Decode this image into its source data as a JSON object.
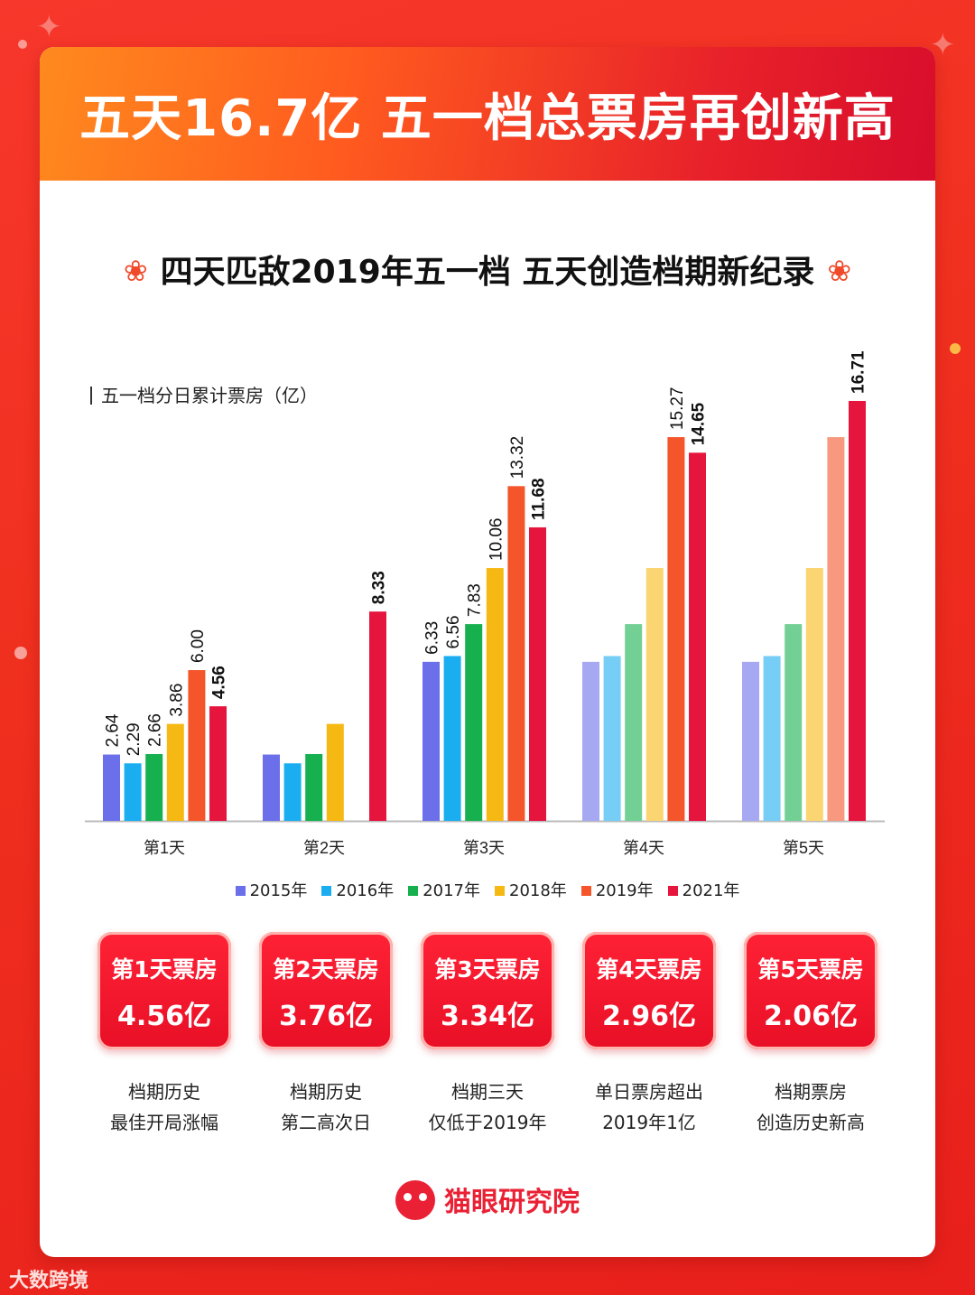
{
  "header": {
    "title": "五天16.7亿 五一档总票房再创新高",
    "subtitle": "四天匹敌2019年五一档 五天创造档期新纪录",
    "subtitle_deco": "❀"
  },
  "chart_data": {
    "type": "bar",
    "title": "五一档分日累计票房（亿）",
    "categories": [
      "第1天",
      "第2天",
      "第3天",
      "第4天",
      "第5天"
    ],
    "series": [
      {
        "name": "2015年",
        "color": "#6b6fe9",
        "values": [
          2.64,
          null,
          6.33,
          null,
          null
        ],
        "labels": [
          "2.64",
          "",
          "6.33",
          "",
          ""
        ]
      },
      {
        "name": "2016年",
        "color": "#1aaef0",
        "values": [
          2.29,
          null,
          6.56,
          null,
          null
        ],
        "labels": [
          "2.29",
          "",
          "6.56",
          "",
          ""
        ]
      },
      {
        "name": "2017年",
        "color": "#16b04e",
        "values": [
          2.66,
          null,
          7.83,
          null,
          null
        ],
        "labels": [
          "2.66",
          "",
          "7.83",
          "",
          ""
        ]
      },
      {
        "name": "2018年",
        "color": "#f6b914",
        "values": [
          3.86,
          null,
          10.06,
          null,
          null
        ],
        "labels": [
          "3.86",
          "",
          "10.06",
          "",
          ""
        ]
      },
      {
        "name": "2019年",
        "color": "#f4552a",
        "values": [
          6.0,
          null,
          13.32,
          15.27,
          null
        ],
        "labels": [
          "6.00",
          "",
          "13.32",
          "15.27",
          ""
        ]
      },
      {
        "name": "2021年",
        "color": "#e5153d",
        "values": [
          4.56,
          8.33,
          11.68,
          14.65,
          16.71
        ],
        "labels": [
          "4.56",
          "8.33",
          "11.68",
          "14.65",
          "16.71"
        ]
      }
    ],
    "note": "Bars for days where earlier years had ended repeat the final totals in lighter shades.",
    "ylim": [
      0,
      17.5
    ]
  },
  "tiles": [
    {
      "title": "第1天票房",
      "value": "4.56亿",
      "note1": "档期历史",
      "note2": "最佳开局涨幅"
    },
    {
      "title": "第2天票房",
      "value": "3.76亿",
      "note1": "档期历史",
      "note2": "第二高次日"
    },
    {
      "title": "第3天票房",
      "value": "3.34亿",
      "note1": "档期三天",
      "note2": "仅低于2019年"
    },
    {
      "title": "第4天票房",
      "value": "2.96亿",
      "note1": "单日票房超出",
      "note2": "2019年1亿"
    },
    {
      "title": "第5天票房",
      "value": "2.06亿",
      "note1": "档期票房",
      "note2": "创造历史新高"
    }
  ],
  "brand": {
    "name": "猫眼研究院"
  },
  "watermark": {
    "text": "大数跨境"
  }
}
